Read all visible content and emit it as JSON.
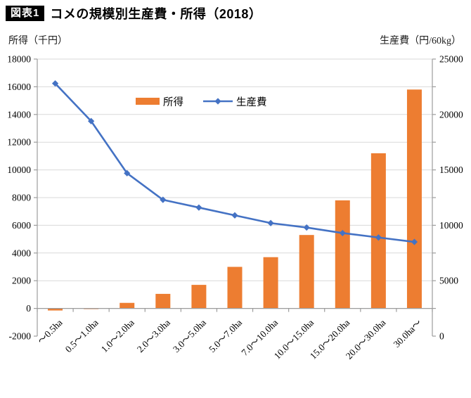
{
  "header": {
    "badge": "図表1",
    "title": "コメの規模別生産費・所得（2018）"
  },
  "chart_data": {
    "type": "bar",
    "subtype": "bar+line combo, dual axis",
    "title": "コメの規模別生産費・所得（2018）",
    "categories": [
      "～0.5ha",
      "0.5～1.0ha",
      "1.0～2.0ha",
      "2.0～3.0ha",
      "3.0～5.0ha",
      "5.0～7.0ha",
      "7.0～10.0ha",
      "10.0～15.0ha",
      "15.0～20.0ha",
      "20.0～30.0ha",
      "30.0ha～"
    ],
    "series": [
      {
        "name": "所得",
        "type": "bar",
        "axis": "left",
        "color": "#ED7D31",
        "values": [
          -150,
          -50,
          400,
          1050,
          1700,
          3000,
          3700,
          5300,
          7800,
          11200,
          15800
        ]
      },
      {
        "name": "生産費",
        "type": "line",
        "axis": "right",
        "color": "#4472C4",
        "marker": "diamond",
        "values": [
          22800,
          19400,
          14700,
          12300,
          11600,
          10900,
          10200,
          9800,
          9300,
          8900,
          8500
        ]
      }
    ],
    "left_axis": {
      "label": "所得（千円）",
      "min": -2000,
      "max": 18000,
      "step": 2000
    },
    "right_axis": {
      "label": "生産費（円/60kg）",
      "min": 0,
      "max": 25000,
      "step": 5000,
      "minor_step": 2500
    },
    "grid": true,
    "legend": {
      "position": "inside-top",
      "items": [
        "所得",
        "生産費"
      ]
    },
    "colors": {
      "grid": "#D9D9D9",
      "axis": "#9C9C9C",
      "text": "#000000"
    }
  }
}
